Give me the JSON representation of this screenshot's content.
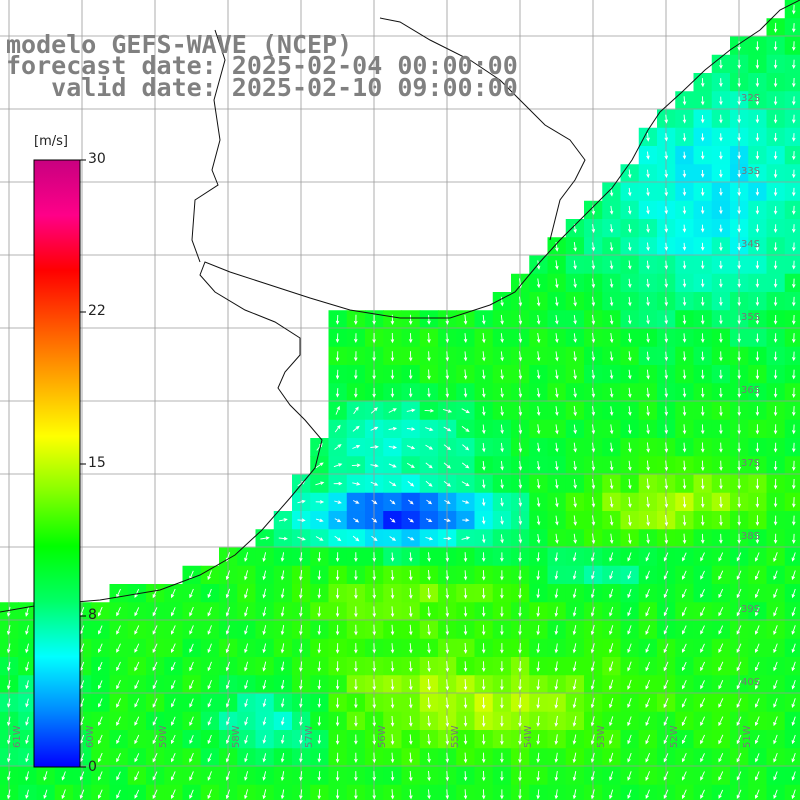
{
  "title": {
    "line1": "modelo GEFS-WAVE (NCEP)",
    "line2": "forecast date: 2025-02-04 00:00:00",
    "line3": "   valid date: 2025-02-10 09:00:00"
  },
  "colorbar": {
    "unit": "[m/s]",
    "ticks": [
      "30",
      "22",
      "15",
      "8",
      "0"
    ],
    "colors": [
      "#0000ff",
      "#0088ff",
      "#00ffff",
      "#00ff66",
      "#00ff00",
      "#88ff00",
      "#ffff00",
      "#ffaa00",
      "#ff5500",
      "#ff0000",
      "#ff0088",
      "#c80080"
    ]
  },
  "axes": {
    "lat_labels": [
      "32S",
      "33S",
      "34S",
      "35S",
      "36S",
      "37S",
      "38S",
      "39S",
      "40S"
    ],
    "lon_labels": [
      "61W",
      "60W",
      "59W",
      "58W",
      "57W",
      "56W",
      "55W",
      "54W",
      "53W",
      "52W",
      "51W"
    ]
  }
}
